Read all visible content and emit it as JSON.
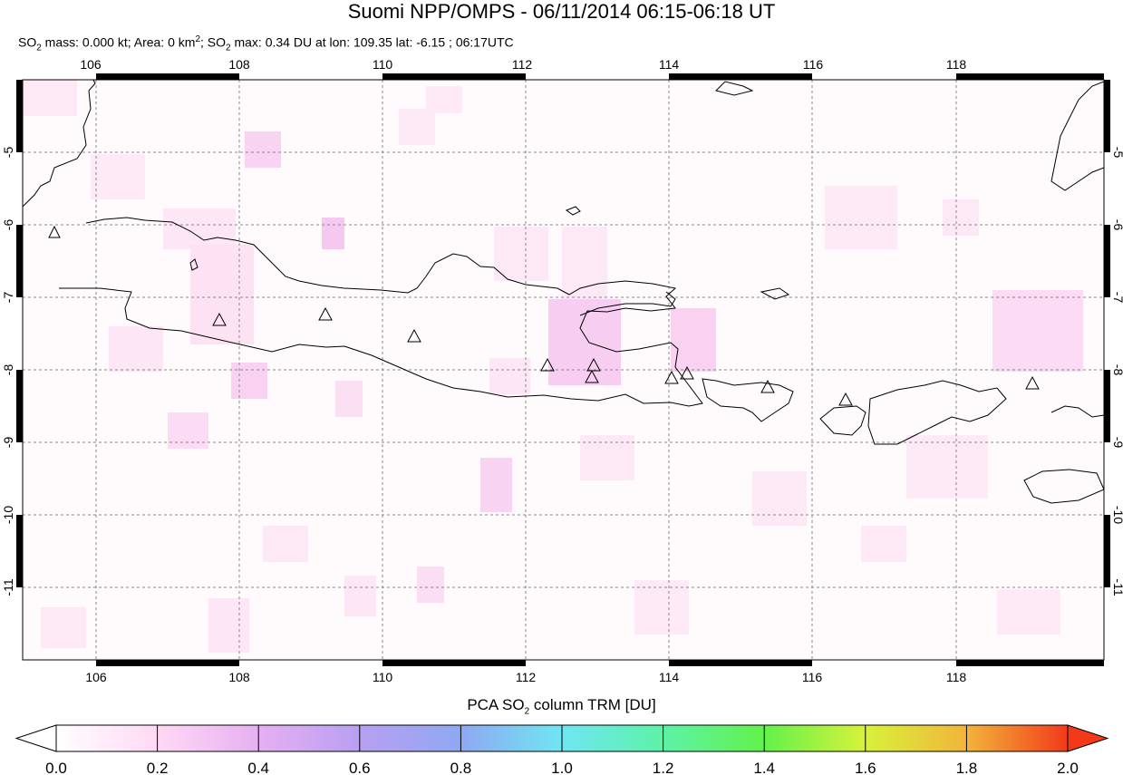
{
  "title": "Suomi NPP/OMPS - 06/11/2014 06:15-06:18 UT",
  "subtitle": {
    "so2_mass_label": "SO",
    "mass_text": " mass: 0.000 kt; Area: 0 km",
    "so2_max_label": "; SO",
    "max_text": " max: 0.34 DU at lon: 109.35 lat: -6.15 ; 06:17UTC"
  },
  "map": {
    "lon_range": [
      105.0,
      120.0
    ],
    "lat_range": [
      -12.0,
      -3.0
    ],
    "lon_ticks": [
      "106",
      "108",
      "110",
      "112",
      "114",
      "116",
      "118"
    ],
    "lat_ticks": [
      "-5",
      "-6",
      "-7",
      "-8",
      "-9",
      "-10",
      "-11"
    ],
    "gridlines": "dashed",
    "volcano_marker": "triangle-icon"
  },
  "colorbar": {
    "title_pre": "PCA SO",
    "title_post": " column TRM [DU]",
    "tick_labels": [
      "0.0",
      "0.2",
      "0.4",
      "0.6",
      "0.8",
      "1.0",
      "1.2",
      "1.4",
      "1.6",
      "1.8",
      "2.0"
    ],
    "range": [
      0.0,
      2.0
    ],
    "colors": [
      "#ffffff",
      "#ffd8f4",
      "#d9a6f2",
      "#9f9ff2",
      "#7fcff2",
      "#6ef2f2",
      "#55f28a",
      "#7ff23a",
      "#f2f23a",
      "#f2a13a",
      "#f23a1a"
    ]
  }
}
